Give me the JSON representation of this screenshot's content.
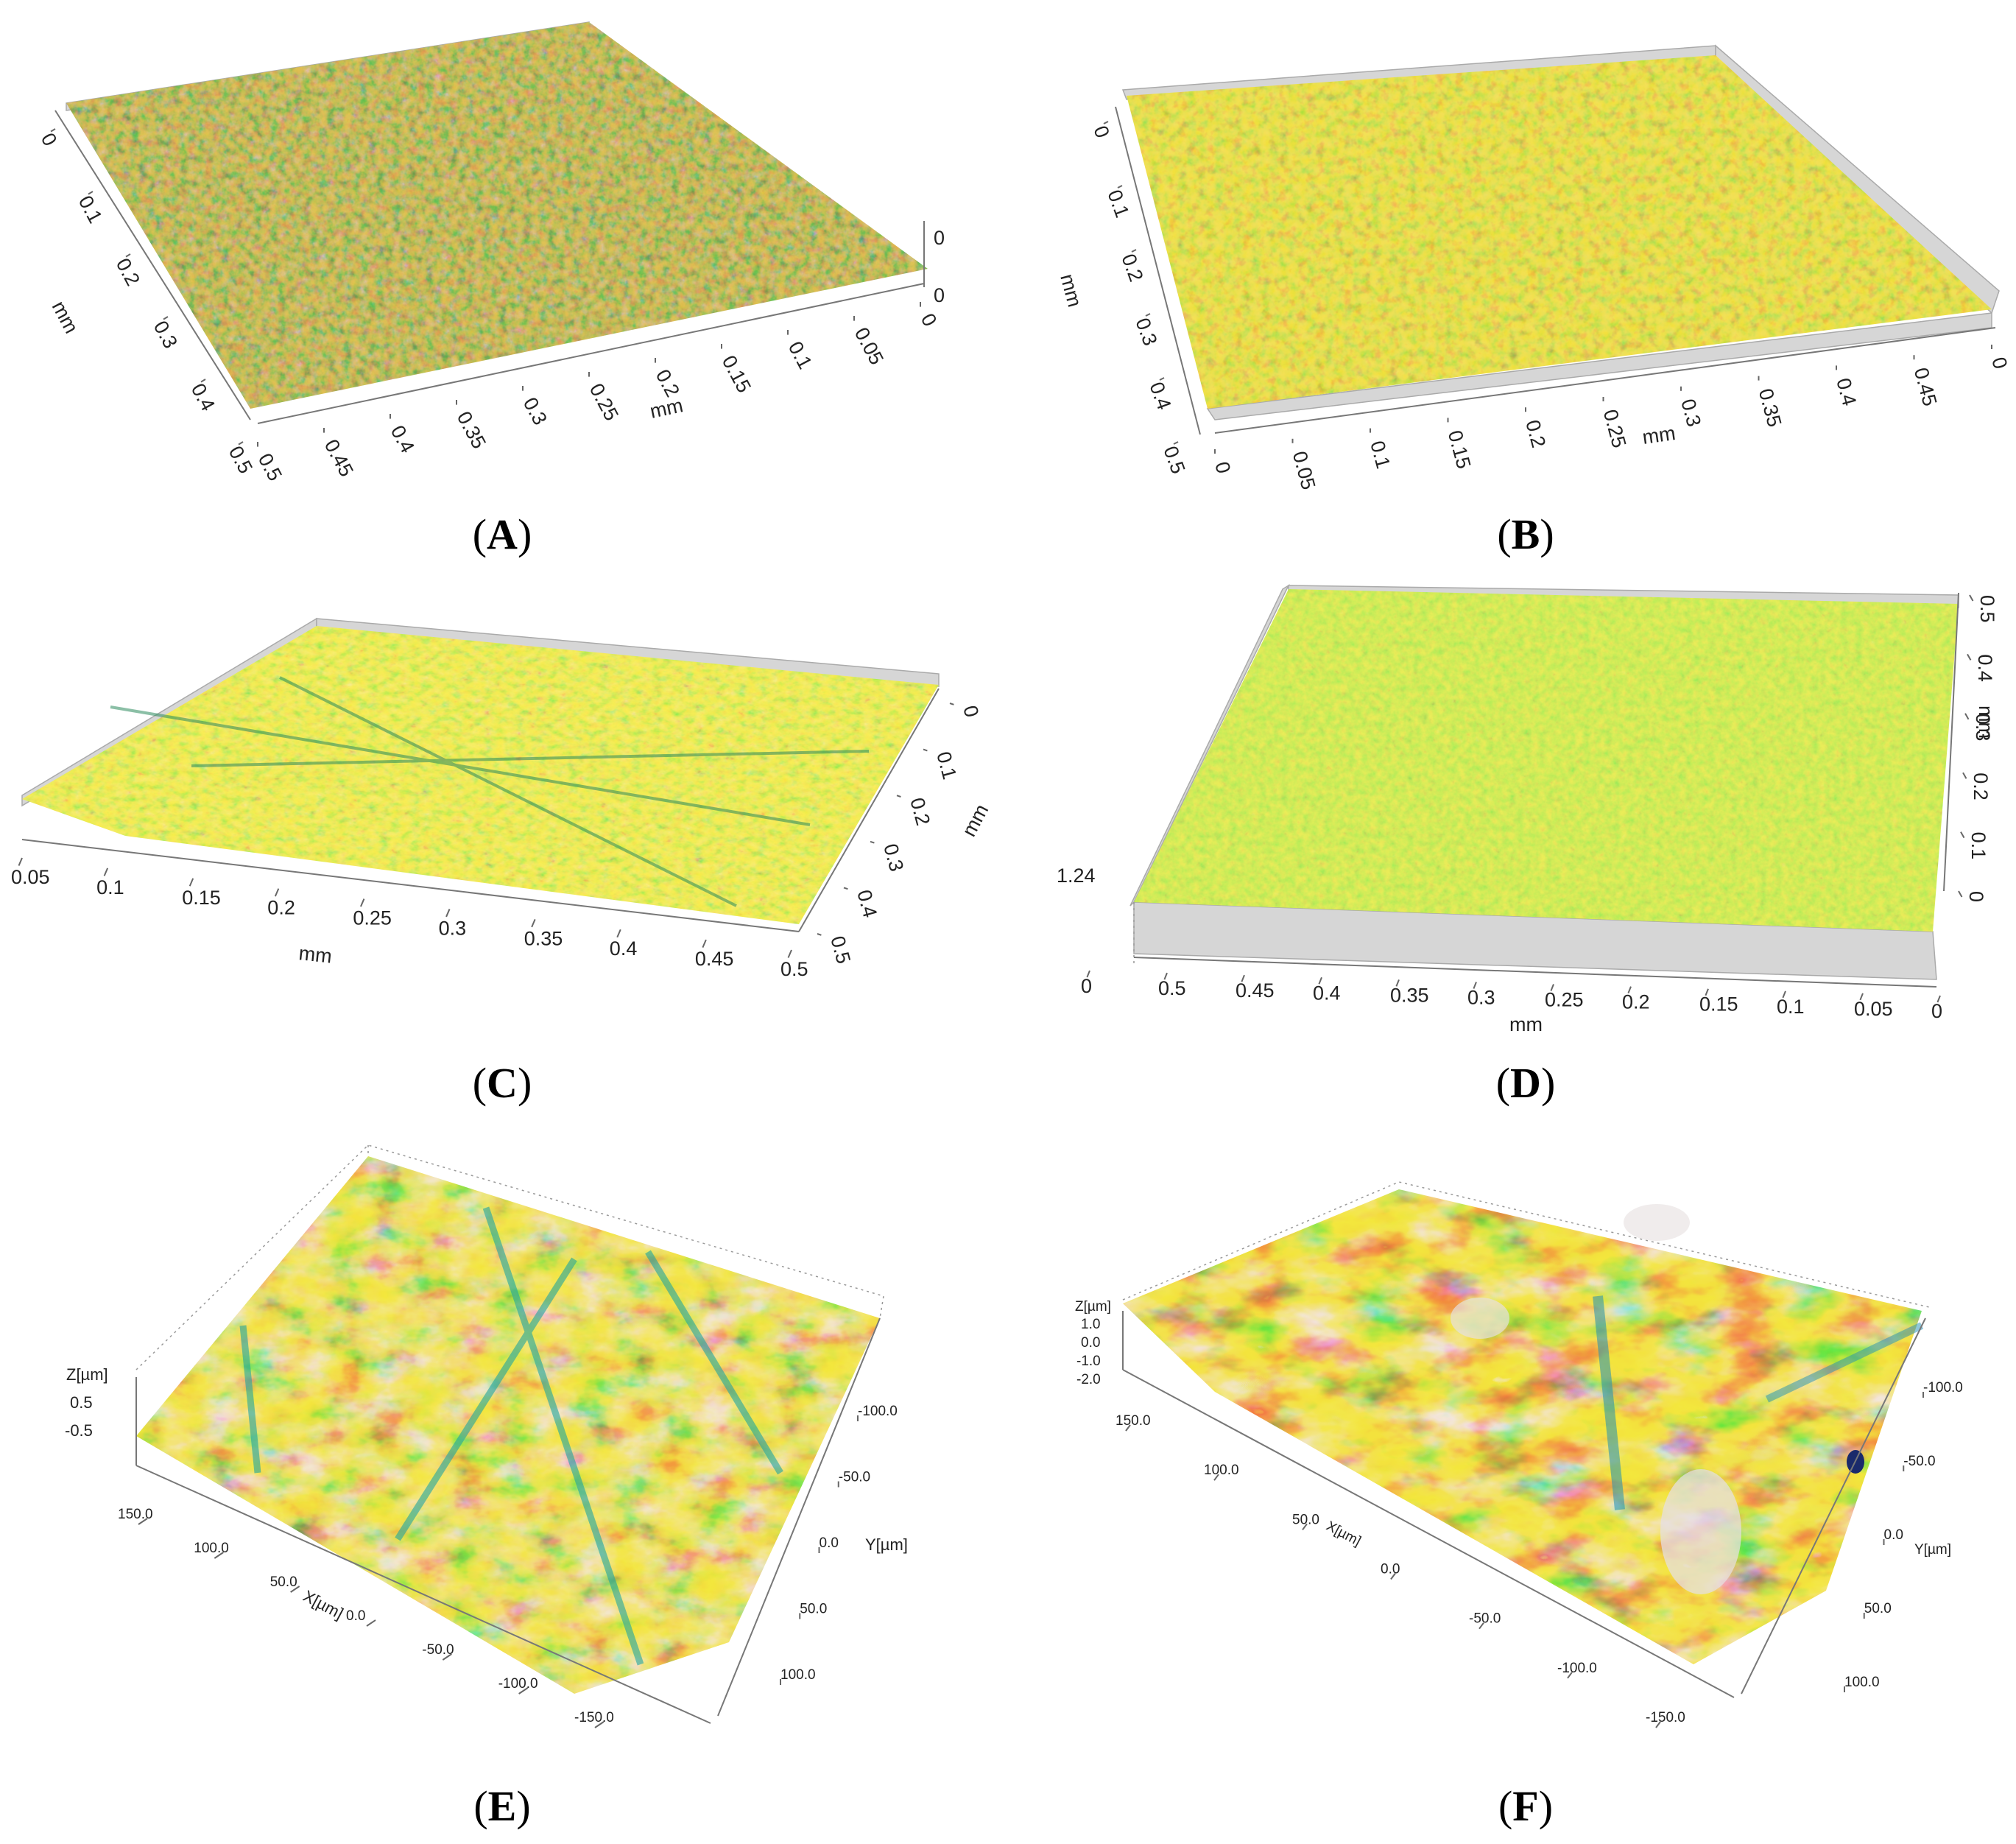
{
  "panels": [
    {
      "id": "A",
      "caption": "A",
      "palette": "dark",
      "axes": {
        "left_unit": "mm",
        "left_ticks": [
          "0",
          "0.1",
          "0.2",
          "0.3",
          "0.4",
          "0.5"
        ],
        "bottom_unit": "mm",
        "bottom_ticks": [
          "0.5",
          "0.45",
          "0.4",
          "0.35",
          "0.3",
          "0.25",
          "0.2",
          "0.15",
          "0.1",
          "0.05",
          "0"
        ],
        "z_ticks": [
          "0",
          "0"
        ]
      }
    },
    {
      "id": "B",
      "caption": "B",
      "palette": "light",
      "axes": {
        "left_unit": "mm",
        "left_ticks": [
          "0",
          "0.1",
          "0.2",
          "0.3",
          "0.4",
          "0.5"
        ],
        "bottom_unit": "mm",
        "bottom_ticks": [
          "0",
          "0.05",
          "0.1",
          "0.15",
          "0.2",
          "0.25",
          "0.3",
          "0.35",
          "0.4",
          "0.45",
          "0"
        ]
      }
    },
    {
      "id": "C",
      "caption": "C",
      "palette": "yellowgreen",
      "axes": {
        "right_unit": "mm",
        "right_ticks": [
          "0",
          "0.1",
          "0.2",
          "0.3",
          "0.4",
          "0.5"
        ],
        "bottom_unit": "mm",
        "bottom_ticks": [
          "0.05",
          "0.1",
          "0.15",
          "0.2",
          "0.25",
          "0.3",
          "0.35",
          "0.4",
          "0.45",
          "0.5"
        ]
      }
    },
    {
      "id": "D",
      "caption": "D",
      "palette": "green",
      "axes": {
        "right_unit": "mm",
        "right_ticks": [
          "0.5",
          "0.4",
          "0.3",
          "0.2",
          "0.1",
          "0"
        ],
        "bottom_unit": "mm",
        "bottom_ticks": [
          "0",
          "0.5",
          "0.45",
          "0.4",
          "0.35",
          "0.3",
          "0.25",
          "0.2",
          "0.15",
          "0.1",
          "0.05",
          "0"
        ],
        "z_label": "1.24"
      }
    },
    {
      "id": "E",
      "caption": "E",
      "palette": "contour",
      "axes": {
        "z_label": "Z[µm]",
        "z_ticks": [
          "0.5",
          "-0.5"
        ],
        "x_label": "X[µm]",
        "x_ticks": [
          "150.0",
          "100.0",
          "50.0",
          "0.0",
          "-50.0",
          "-100.0",
          "-150.0"
        ],
        "y_label": "Y[µm]",
        "y_ticks": [
          "-100.0",
          "-50.0",
          "0.0",
          "50.0",
          "100.0"
        ]
      }
    },
    {
      "id": "F",
      "caption": "F",
      "palette": "contour-hot",
      "axes": {
        "z_label": "Z[µm]",
        "z_ticks": [
          "1.0",
          "0.0",
          "-1.0",
          "-2.0"
        ],
        "x_label": "X[µm]",
        "x_ticks": [
          "150.0",
          "100.0",
          "50.0",
          "0.0",
          "-50.0",
          "-100.0",
          "-150.0"
        ],
        "y_label": "Y[µm]",
        "y_ticks": [
          "-100.0",
          "-50.0",
          "0.0",
          "50.0",
          "100.0"
        ]
      }
    }
  ]
}
